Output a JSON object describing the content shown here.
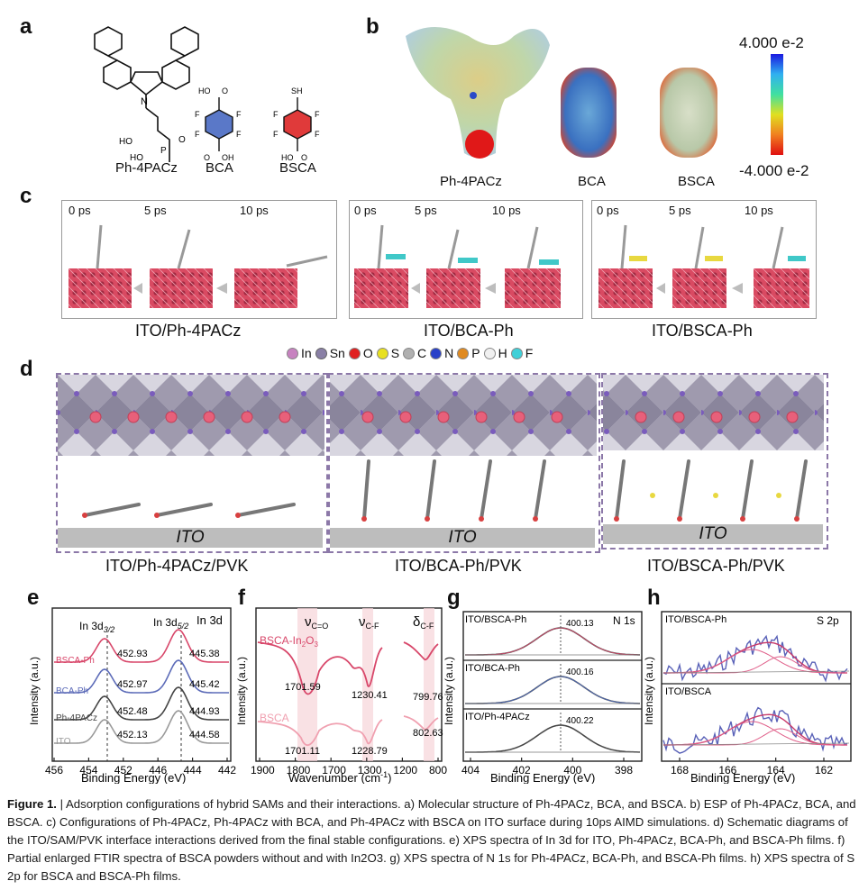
{
  "panel_labels": {
    "a": "a",
    "b": "b",
    "c": "c",
    "d": "d",
    "e": "e",
    "f": "f",
    "g": "g",
    "h": "h"
  },
  "panel_a": {
    "molecules": [
      "Ph-4PACz",
      "BCA",
      "BSCA"
    ]
  },
  "panel_b": {
    "molecules": [
      "Ph-4PACz",
      "BCA",
      "BSCA"
    ],
    "colorbar_max": "4.000 e-2",
    "colorbar_min": "-4.000 e-2"
  },
  "panel_c": {
    "boxes": [
      {
        "title": "ITO/Ph-4PACz",
        "times": [
          "0 ps",
          "5 ps",
          "10 ps"
        ]
      },
      {
        "title": "ITO/BCA-Ph",
        "times": [
          "0 ps",
          "5 ps",
          "10 ps"
        ]
      },
      {
        "title": "ITO/BSCA-Ph",
        "times": [
          "0 ps",
          "5 ps",
          "10 ps"
        ]
      }
    ]
  },
  "legend_atoms": [
    {
      "label": "In",
      "color": "#c782c0"
    },
    {
      "label": "Sn",
      "color": "#8a80a6"
    },
    {
      "label": "O",
      "color": "#e02020"
    },
    {
      "label": "S",
      "color": "#e8e020"
    },
    {
      "label": "C",
      "color": "#b0b0b0"
    },
    {
      "label": "N",
      "color": "#2840c8"
    },
    {
      "label": "P",
      "color": "#e08a20"
    },
    {
      "label": "H",
      "color": "#f0f0f0"
    },
    {
      "label": "F",
      "color": "#40d0d8"
    }
  ],
  "panel_d": {
    "boxes": [
      {
        "substrate": "ITO",
        "caption": "ITO/Ph-4PACz/PVK"
      },
      {
        "substrate": "ITO",
        "caption": "ITO/BCA-Ph/PVK"
      },
      {
        "substrate": "ITO",
        "caption": "ITO/BSCA-Ph/PVK"
      }
    ]
  },
  "chart_data": [
    {
      "id": "e",
      "type": "line",
      "ylabel": "Intensity (a.u.)",
      "xlabel": "Binding Energy (eV)",
      "corner_label": "In 3d",
      "peak_labels": [
        "In 3d3/2",
        "In 3d5/2"
      ],
      "x_ticks": [
        "456",
        "454",
        "452",
        "446",
        "444",
        "442"
      ],
      "series": [
        {
          "name": "BSCA-Ph",
          "color": "#d8476a",
          "peak1": "452.93",
          "peak2": "445.38"
        },
        {
          "name": "BCA-Ph",
          "color": "#5c6bb8",
          "peak1": "452.97",
          "peak2": "445.42"
        },
        {
          "name": "Ph-4PACz",
          "color": "#444444",
          "peak1": "452.48",
          "peak2": "444.93"
        },
        {
          "name": "ITO",
          "color": "#9a9a9a",
          "peak1": "452.13",
          "peak2": "444.58"
        }
      ]
    },
    {
      "id": "f",
      "type": "line",
      "ylabel": "Intensity (a.u.)",
      "xlabel": "Wavenumber (cm-1)",
      "band_labels": [
        "νC=O",
        "νC-F",
        "δC-F"
      ],
      "x_ticks": [
        "1900",
        "1800",
        "1700",
        "1300",
        "1200",
        "800"
      ],
      "series": [
        {
          "name": "BSCA-In2O3",
          "color": "#d8476a",
          "values": [
            "1701.59",
            "1230.41",
            "799.76"
          ]
        },
        {
          "name": "BSCA",
          "color": "#f0a0b0",
          "values": [
            "1701.11",
            "1228.79",
            "802.63"
          ]
        }
      ]
    },
    {
      "id": "g",
      "type": "line",
      "ylabel": "Intensity (a.u.)",
      "xlabel": "Binding Energy (eV)",
      "corner_label": "N 1s",
      "x_ticks": [
        "404",
        "402",
        "400",
        "398"
      ],
      "series": [
        {
          "name": "ITO/BSCA-Ph",
          "peak": "400.13",
          "color": "#d8476a"
        },
        {
          "name": "ITO/BCA-Ph",
          "peak": "400.16",
          "color": "#4a6ac0"
        },
        {
          "name": "ITO/Ph-4PACz",
          "peak": "400.22",
          "color": "#444444"
        }
      ]
    },
    {
      "id": "h",
      "type": "line",
      "ylabel": "Intensity (a.u.)",
      "xlabel": "Binding Energy (eV)",
      "corner_label": "S 2p",
      "x_ticks": [
        "168",
        "166",
        "164",
        "162"
      ],
      "series": [
        {
          "name": "ITO/BSCA-Ph",
          "color": "#5a62b8"
        },
        {
          "name": "ITO/BSCA",
          "color": "#5a62b8"
        }
      ]
    }
  ],
  "caption": {
    "figure": "Figure 1.",
    "text": "| Adsorption configurations of hybrid SAMs and their interactions. a) Molecular structure of Ph-4PACz, BCA, and BSCA. b) ESP of Ph-4PACz, BCA, and BSCA. c) Configurations of Ph-4PACz, Ph-4PACz with BCA, and Ph-4PACz with BSCA on ITO surface during 10ps AIMD simulations. d) Schematic diagrams of the ITO/SAM/PVK interface interactions derived from the final stable configurations. e) XPS spectra of In 3d for ITO, Ph-4PACz, BCA-Ph, and BSCA-Ph films. f) Partial enlarged FTIR spectra of BSCA powders without and with In2O3. g) XPS spectra of N 1s for Ph-4PACz, BCA-Ph, and BSCA-Ph films. h) XPS spectra of S 2p for BSCA and BSCA-Ph films."
  }
}
